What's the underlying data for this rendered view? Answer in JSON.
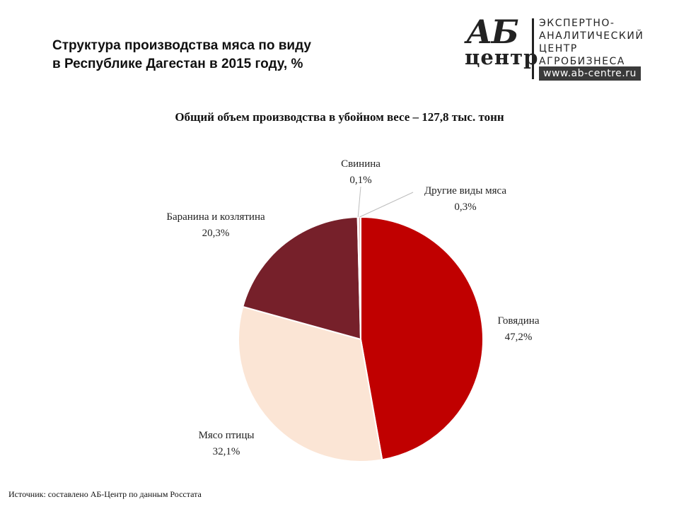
{
  "header": {
    "title_line1": "Структура производства мяса по виду",
    "title_line2": "в Республике Дагестан в 2015 году, %"
  },
  "logo": {
    "mark_top": "АБ",
    "mark_bottom": "центр",
    "line1": "ЭКСПЕРТНО-",
    "line2": "АНАЛИТИЧЕСКИЙ",
    "line3": "ЦЕНТР",
    "line4": "АГРОБИЗНЕСА",
    "url": "www.ab-centre.ru"
  },
  "chart_data": {
    "type": "pie",
    "subtitle": "Общий объем производства  в убойном весе – 127,8 тыс. тонн",
    "slices": [
      {
        "name": "Говядина",
        "value": 47.2,
        "label": "47,2%",
        "color": "#c00000"
      },
      {
        "name": "Мясо птицы",
        "value": 32.1,
        "label": "32,1%",
        "color": "#fbe5d5"
      },
      {
        "name": "Баранина и козлятина",
        "value": 20.3,
        "label": "20,3%",
        "color": "#76202a"
      },
      {
        "name": "Свинина",
        "value": 0.1,
        "label": "0,1%",
        "color": "#e7c3bd"
      },
      {
        "name": "Другие виды мяса",
        "value": 0.3,
        "label": "0,3%",
        "color": "#d9a8a4"
      }
    ]
  },
  "footer": {
    "source": "Источник: составлено АБ-Центр по данным Росстата"
  }
}
